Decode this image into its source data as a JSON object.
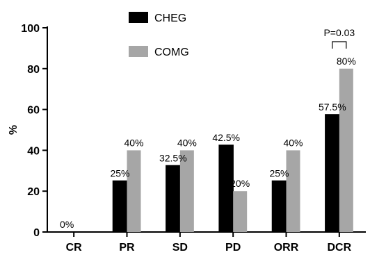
{
  "chart_data": {
    "type": "bar",
    "categories": [
      "CR",
      "PR",
      "SD",
      "PD",
      "ORR",
      "DCR"
    ],
    "series": [
      {
        "name": "CHEG",
        "values": [
          0,
          25,
          32.5,
          42.5,
          25,
          57.5
        ],
        "labels": [
          "0%",
          "25%",
          "32.5%",
          "42.5%",
          "25%",
          "57.5%"
        ],
        "color": "#000000"
      },
      {
        "name": "COMG",
        "values": [
          0,
          40,
          40,
          20,
          40,
          80
        ],
        "labels": [
          "",
          "40%",
          "40%",
          "20%",
          "40%",
          "80%"
        ],
        "color": "#a6a6a6"
      }
    ],
    "ylabel": "%",
    "xlabel": "",
    "ylim": [
      0,
      100
    ],
    "yticks": [
      0,
      20,
      40,
      60,
      80,
      100
    ],
    "ytick_labels": [
      "0",
      "20",
      "40",
      "60",
      "80",
      "100"
    ],
    "legend_position": "top",
    "grid": false,
    "annotation": {
      "text": "P=0.03",
      "category": "DCR"
    }
  }
}
